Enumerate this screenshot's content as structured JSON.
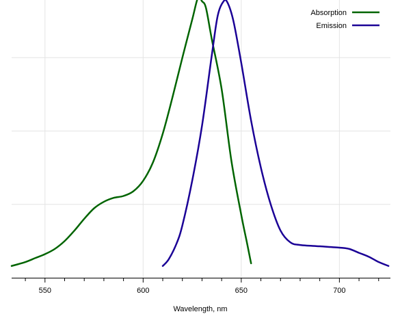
{
  "chart_data": {
    "type": "line",
    "title": "",
    "xlabel": "Wavelength, nm",
    "ylabel": "",
    "xlim": [
      533,
      726
    ],
    "ylim": [
      0,
      1.06
    ],
    "x_ticks": [
      550,
      600,
      650,
      700
    ],
    "x_minor_step": 10,
    "y_gridlines": [
      0.28,
      0.56,
      0.84
    ],
    "grid": true,
    "legend": "top-right",
    "series": [
      {
        "name": "Absorption",
        "color": "#006400",
        "points": [
          [
            533,
            0.045
          ],
          [
            540,
            0.06
          ],
          [
            545,
            0.075
          ],
          [
            550,
            0.09
          ],
          [
            555,
            0.11
          ],
          [
            560,
            0.14
          ],
          [
            565,
            0.18
          ],
          [
            570,
            0.225
          ],
          [
            575,
            0.265
          ],
          [
            580,
            0.29
          ],
          [
            585,
            0.305
          ],
          [
            590,
            0.312
          ],
          [
            595,
            0.33
          ],
          [
            600,
            0.37
          ],
          [
            605,
            0.44
          ],
          [
            610,
            0.55
          ],
          [
            615,
            0.69
          ],
          [
            620,
            0.84
          ],
          [
            625,
            0.985
          ],
          [
            628,
            1.07
          ],
          [
            630,
            1.055
          ],
          [
            632,
            1.03
          ],
          [
            635,
            0.91
          ],
          [
            640,
            0.72
          ],
          [
            645,
            0.445
          ],
          [
            650,
            0.24
          ],
          [
            653,
            0.13
          ],
          [
            655,
            0.055
          ]
        ]
      },
      {
        "name": "Emission",
        "color": "#1a0096",
        "points": [
          [
            610,
            0.045
          ],
          [
            613,
            0.07
          ],
          [
            617,
            0.13
          ],
          [
            620,
            0.2
          ],
          [
            625,
            0.37
          ],
          [
            630,
            0.58
          ],
          [
            635,
            0.85
          ],
          [
            638,
            1.0
          ],
          [
            641,
            1.055
          ],
          [
            643,
            1.05
          ],
          [
            646,
            0.98
          ],
          [
            650,
            0.82
          ],
          [
            655,
            0.6
          ],
          [
            660,
            0.42
          ],
          [
            665,
            0.28
          ],
          [
            670,
            0.18
          ],
          [
            675,
            0.135
          ],
          [
            680,
            0.125
          ],
          [
            690,
            0.12
          ],
          [
            700,
            0.115
          ],
          [
            705,
            0.11
          ],
          [
            710,
            0.095
          ],
          [
            715,
            0.08
          ],
          [
            720,
            0.06
          ],
          [
            725,
            0.045
          ]
        ]
      }
    ]
  }
}
